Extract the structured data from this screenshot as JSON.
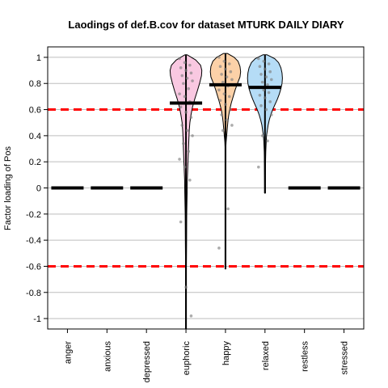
{
  "chart_data": {
    "type": "violin",
    "title": "Laodings of def.B.cov for dataset MTURK DAILY DIARY",
    "xlabel": "",
    "ylabel": "Factor loading of Pos",
    "ylim": [
      -1.08,
      1.08
    ],
    "yticks": [
      1,
      0.8,
      0.6,
      0.4,
      0.2,
      0,
      -0.2,
      -0.4,
      -0.6,
      -0.8,
      -1
    ],
    "ytick_labels": [
      "1",
      "0.8",
      "0.6",
      "0.4",
      "0.2",
      "0",
      "-0.2",
      "-0.4",
      "-0.6",
      "-0.8",
      "-1"
    ],
    "grid": true,
    "reference_lines": [
      {
        "y": 0.6,
        "color": "#ff0000",
        "style": "dashed"
      },
      {
        "y": -0.6,
        "color": "#ff0000",
        "style": "dashed"
      }
    ],
    "categories": [
      "anger",
      "anxious",
      "depressed",
      "euphoric",
      "happy",
      "relaxed",
      "restless",
      "stressed"
    ],
    "medians": [
      0,
      0,
      0,
      0.65,
      0.79,
      0.77,
      0,
      0
    ],
    "violins": [
      {
        "category": "euphoric",
        "fill": "#f9c8e1",
        "min": -1.08,
        "max": 1.02,
        "profile": [
          [
            1.02,
            0.05
          ],
          [
            0.98,
            0.5
          ],
          [
            0.94,
            0.75
          ],
          [
            0.9,
            0.82
          ],
          [
            0.86,
            0.8
          ],
          [
            0.8,
            0.7
          ],
          [
            0.74,
            0.58
          ],
          [
            0.68,
            0.45
          ],
          [
            0.62,
            0.34
          ],
          [
            0.56,
            0.26
          ],
          [
            0.5,
            0.2
          ],
          [
            0.44,
            0.17
          ],
          [
            0.38,
            0.15
          ],
          [
            0.3,
            0.13
          ],
          [
            0.22,
            0.11
          ],
          [
            0.14,
            0.09
          ],
          [
            0.06,
            0.07
          ],
          [
            -0.04,
            0.06
          ],
          [
            -0.2,
            0.04
          ],
          [
            -0.4,
            0.03
          ],
          [
            -0.6,
            0.02
          ],
          [
            -0.8,
            0.02
          ],
          [
            -1.0,
            0.02
          ],
          [
            -1.08,
            0.01
          ]
        ],
        "points": [
          0.99,
          0.96,
          0.94,
          0.92,
          0.9,
          0.88,
          0.86,
          0.84,
          0.82,
          0.8,
          0.76,
          0.72,
          0.7,
          0.66,
          0.62,
          0.58,
          0.54,
          0.48,
          0.44,
          0.4,
          0.34,
          0.28,
          0.22,
          0.16,
          0.06,
          -0.26,
          -0.76,
          -0.98
        ]
      },
      {
        "category": "happy",
        "fill": "#fcd1a8",
        "min": -0.62,
        "max": 1.03,
        "profile": [
          [
            1.03,
            0.1
          ],
          [
            1.0,
            0.45
          ],
          [
            0.97,
            0.65
          ],
          [
            0.93,
            0.75
          ],
          [
            0.89,
            0.78
          ],
          [
            0.85,
            0.75
          ],
          [
            0.8,
            0.62
          ],
          [
            0.75,
            0.5
          ],
          [
            0.7,
            0.4
          ],
          [
            0.65,
            0.3
          ],
          [
            0.6,
            0.22
          ],
          [
            0.55,
            0.16
          ],
          [
            0.5,
            0.12
          ],
          [
            0.45,
            0.09
          ],
          [
            0.4,
            0.06
          ],
          [
            0.35,
            0.03
          ],
          [
            0.3,
            0.015
          ],
          [
            0.0,
            0.01
          ],
          [
            -0.62,
            0.01
          ]
        ],
        "points": [
          1.0,
          0.97,
          0.95,
          0.93,
          0.91,
          0.89,
          0.87,
          0.85,
          0.83,
          0.81,
          0.78,
          0.75,
          0.72,
          0.7,
          0.67,
          0.64,
          0.6,
          0.56,
          0.52,
          0.48,
          0.44,
          -0.16,
          -0.46
        ]
      },
      {
        "category": "relaxed",
        "fill": "#b5dcf6",
        "min": -0.04,
        "max": 1.02,
        "profile": [
          [
            1.02,
            0.1
          ],
          [
            0.99,
            0.5
          ],
          [
            0.96,
            0.7
          ],
          [
            0.92,
            0.82
          ],
          [
            0.88,
            0.88
          ],
          [
            0.84,
            0.9
          ],
          [
            0.8,
            0.88
          ],
          [
            0.76,
            0.82
          ],
          [
            0.72,
            0.74
          ],
          [
            0.68,
            0.64
          ],
          [
            0.64,
            0.52
          ],
          [
            0.6,
            0.4
          ],
          [
            0.56,
            0.3
          ],
          [
            0.52,
            0.22
          ],
          [
            0.48,
            0.16
          ],
          [
            0.44,
            0.12
          ],
          [
            0.4,
            0.08
          ],
          [
            0.35,
            0.06
          ],
          [
            0.28,
            0.04
          ],
          [
            0.2,
            0.03
          ],
          [
            0.1,
            0.02
          ],
          [
            0.0,
            0.015
          ],
          [
            -0.04,
            0.01
          ]
        ],
        "points": [
          0.99,
          0.97,
          0.95,
          0.93,
          0.91,
          0.89,
          0.87,
          0.85,
          0.83,
          0.81,
          0.79,
          0.77,
          0.75,
          0.73,
          0.71,
          0.69,
          0.66,
          0.63,
          0.6,
          0.56,
          0.4,
          0.36,
          0.16
        ]
      }
    ]
  }
}
